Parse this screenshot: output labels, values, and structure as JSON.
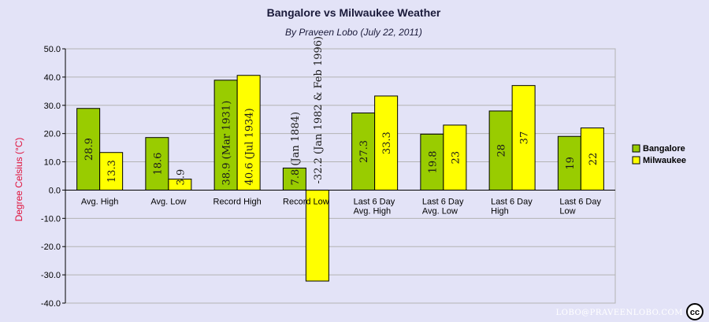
{
  "chart_data": {
    "type": "bar",
    "title": "Bangalore vs Milwaukee Weather",
    "subtitle": "By Praveen Lobo (July 22, 2011)",
    "ylabel": "Degree Celsius (°C)",
    "xlabel": "",
    "ylim": [
      -40,
      50
    ],
    "yticks": [
      "50.0",
      "40.0",
      "30.0",
      "20.0",
      "10.0",
      "0.0",
      "-10.0",
      "-20.0",
      "-30.0",
      "-40.0"
    ],
    "grid": true,
    "legend_position": "right",
    "categories": [
      [
        "Avg. High"
      ],
      [
        "Avg. Low"
      ],
      [
        "Record High"
      ],
      [
        "Record Low"
      ],
      [
        "Last 6 Day",
        "Avg. High"
      ],
      [
        "Last 6 Day",
        "Avg. Low"
      ],
      [
        "Last 6 Day",
        "High"
      ],
      [
        "Last 6 Day",
        "Low"
      ]
    ],
    "series": [
      {
        "name": "Bangalore",
        "color": "#99cc00",
        "values": [
          28.9,
          18.6,
          38.9,
          7.8,
          27.3,
          19.8,
          28,
          19
        ],
        "labels": [
          "28.9",
          "18.6",
          "38.9 (Mar 1931)",
          "7.8 (Jan 1884)",
          "27.3",
          "19.8",
          "28",
          "19"
        ]
      },
      {
        "name": "Milwaukee",
        "color": "#ffff00",
        "values": [
          13.3,
          3.9,
          40.6,
          -32.2,
          33.3,
          23,
          37,
          22
        ],
        "labels": [
          "13.3",
          "3.9",
          "40.6 (Jul 1934)",
          "-32.2 (Jan 1982 & Feb 1996)",
          "33.3",
          "23",
          "37",
          "22"
        ]
      }
    ]
  },
  "watermark": {
    "text": "LOBO@PRAVEENLOBO.COM",
    "cc_icon": "creative-commons-icon",
    "cc_text": "cc"
  }
}
